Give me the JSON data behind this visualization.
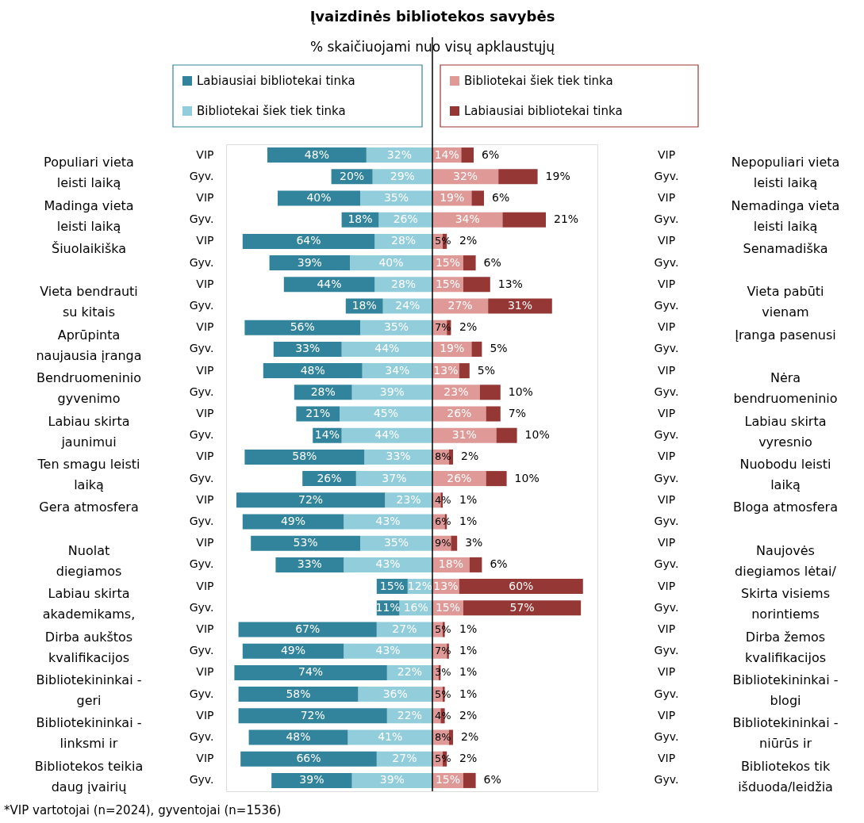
{
  "chart_data": [
    {
      "type": "bar",
      "orientation": "horizontal",
      "stacked": true,
      "title": "Įvaizdinės bibliotekos savybės",
      "subtitle": "% skaičiuojami nuo visų apklaustųjų",
      "categories": [
        "VIP",
        "Gyv.",
        "VIP",
        "Gyv.",
        "VIP",
        "Gyv.",
        "VIP",
        "Gyv.",
        "VIP",
        "Gyv.",
        "VIP",
        "Gyv.",
        "VIP",
        "Gyv.",
        "VIP",
        "Gyv.",
        "VIP",
        "Gyv.",
        "VIP",
        "Gyv.",
        "VIP",
        "Gyv.",
        "VIP",
        "Gyv.",
        "VIP",
        "Gyv.",
        "VIP",
        "Gyv.",
        "VIP",
        "Gyv."
      ],
      "y_categories": [
        "Populiari vieta\nleisti laiką",
        "Madinga vieta\nleisti laiką",
        "Šiuolaikiška",
        "Vieta bendrauti\nsu kitais",
        "Aprūpinta\nnaujausia įranga",
        "Bendruomeninio\ngyvenimo",
        "Labiau skirta\njaunimui",
        "Ten smagu leisti\nlaiką",
        "Gera atmosfera",
        "Nuolat\ndiegiamos",
        "Labiau skirta\nakademikams,",
        "Dirba aukštos\nkvalifikacijos",
        "Bibliotekininkai -\ngeri",
        "Bibliotekininkai -\nlinksmi ir",
        "Bibliotekos teikia\ndaug įvairių"
      ],
      "series": [
        {
          "name": "Bibliotekai šiek tiek tinka",
          "color": "#92cddc",
          "values": [
            32,
            29,
            35,
            26,
            28,
            40,
            28,
            24,
            35,
            44,
            34,
            39,
            45,
            44,
            33,
            37,
            23,
            43,
            35,
            43,
            12,
            16,
            27,
            43,
            22,
            36,
            22,
            41,
            27,
            39
          ],
          "value_labels": [
            "32%",
            "29%",
            "35%",
            "26%",
            "28%",
            "40%",
            "28%",
            "24%",
            "35%",
            "44%",
            "34%",
            "39%",
            "45%",
            "44%",
            "33%",
            "37%",
            "23%",
            "43%",
            "35%",
            "43%",
            "12%",
            "16%",
            "27%",
            "43%",
            "22%",
            "36%",
            "22%",
            "41%",
            "27%",
            "39%"
          ]
        },
        {
          "name": "Labiausiai bibliotekai tinka",
          "color": "#31849b",
          "values": [
            48,
            20,
            40,
            18,
            64,
            39,
            44,
            18,
            56,
            33,
            48,
            28,
            21,
            14,
            58,
            26,
            72,
            49,
            53,
            33,
            15,
            11,
            67,
            49,
            74,
            58,
            72,
            48,
            66,
            39
          ],
          "value_labels": [
            "48%",
            "20%",
            "40%",
            "18%",
            "64%",
            "39%",
            "44%",
            "18%",
            "56%",
            "33%",
            "48%",
            "28%",
            "21%",
            "14%",
            "58%",
            "26%",
            "72%",
            "49%",
            "53%",
            "33%",
            "15%",
            "11%",
            "67%",
            "49%",
            "74%",
            "58%",
            "72%",
            "48%",
            "66%",
            "39%"
          ]
        }
      ],
      "tick_labels": "y",
      "legend": "top",
      "annotations": [
        "*VIP vartotojai (n=2024), gyventojai (n=1536)"
      ]
    },
    {
      "type": "bar",
      "orientation": "horizontal",
      "stacked": true,
      "categories": [
        "VIP",
        "Gyv.",
        "VIP",
        "Gyv.",
        "VIP",
        "Gyv.",
        "VIP",
        "Gyv.",
        "VIP",
        "Gyv.",
        "VIP",
        "Gyv.",
        "VIP",
        "Gyv.",
        "VIP",
        "Gyv.",
        "VIP",
        "Gyv.",
        "VIP",
        "Gyv.",
        "VIP",
        "Gyv.",
        "VIP",
        "Gyv.",
        "VIP",
        "Gyv.",
        "VIP",
        "Gyv.",
        "VIP",
        "Gyv."
      ],
      "y_categories": [
        "Nepopuliari vieta\nleisti laiką",
        "Nemadinga vieta\nleisti laiką",
        "Senamadiška",
        "Vieta pabūti\nvienam",
        "Įranga pasenusi",
        "Nėra\nbendruomeninio",
        "Labiau skirta\nvyresnio",
        "Nuobodu leisti\nlaiką",
        "Bloga atmosfera",
        "Naujovės\ndiegiamos lėtai/",
        "Skirta visiems\nnorintiems",
        "Dirba žemos\nkvalifikacijos",
        "Bibliotekininkai -\nblogi",
        "Bibliotekininkai -\nniūrūs ir",
        "Bibliotekos tik\nišduoda/leidžia"
      ],
      "series": [
        {
          "name": "Bibliotekai šiek tiek tinka",
          "color": "#df9997",
          "values": [
            14,
            32,
            19,
            34,
            5,
            15,
            15,
            27,
            7,
            19,
            13,
            23,
            26,
            31,
            8,
            26,
            4,
            6,
            9,
            18,
            13,
            15,
            5,
            7,
            3,
            5,
            4,
            8,
            5,
            15
          ],
          "value_labels": [
            "14%",
            "32%",
            "19%",
            "34%",
            "5%",
            "15%",
            "15%",
            "27%",
            "7%",
            "19%",
            "13%",
            "23%",
            "26%",
            "31%",
            "8%",
            "26%",
            "4%",
            "6%",
            "9%",
            "18%",
            "13%",
            "15%",
            "5%",
            "7%",
            "3%",
            "5%",
            "4%",
            "8%",
            "5%",
            "15%"
          ]
        },
        {
          "name": "Labiausiai bibliotekai tinka",
          "color": "#953735",
          "values": [
            6,
            19,
            6,
            21,
            2,
            6,
            13,
            31,
            2,
            5,
            5,
            10,
            7,
            10,
            2,
            10,
            1,
            1,
            3,
            6,
            60,
            57,
            1,
            1,
            1,
            1,
            2,
            2,
            2,
            6
          ],
          "value_labels": [
            "6%",
            "19%",
            "6%",
            "21%",
            "2%",
            "6%",
            "13%",
            "31%",
            "2%",
            "5%",
            "5%",
            "10%",
            "7%",
            "10%",
            "2%",
            "10%",
            "1%",
            "1%",
            "3%",
            "6%",
            "60%",
            "57%",
            "1%",
            "1%",
            "1%",
            "1%",
            "2%",
            "2%",
            "2%",
            "6%"
          ]
        }
      ],
      "tick_labels": "y",
      "legend": "top",
      "ref_lines": [
        {
          "axis": "x",
          "value": 0,
          "color": "#000000"
        }
      ]
    }
  ]
}
